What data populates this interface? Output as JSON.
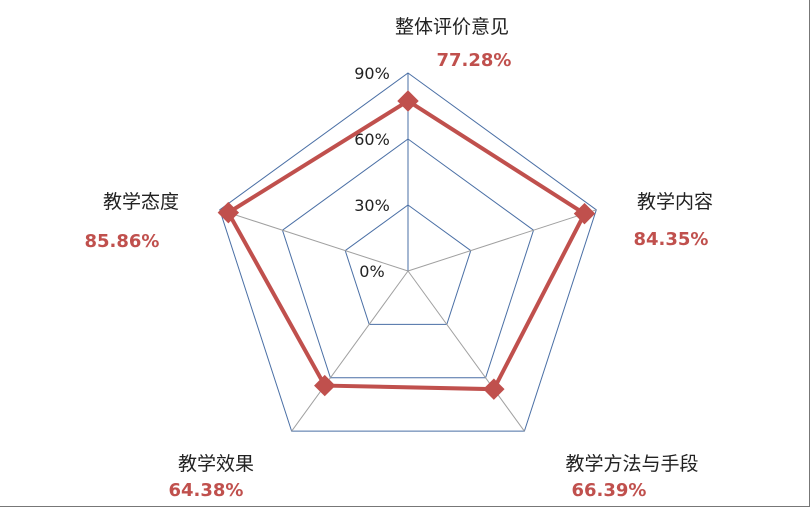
{
  "chart_data": {
    "type": "radar",
    "categories": [
      "整体评价意见",
      "教学内容",
      "教学方法与手段",
      "教学效果",
      "教学态度"
    ],
    "series": [
      {
        "values": [
          77.28,
          84.35,
          66.39,
          64.38,
          85.86
        ]
      }
    ],
    "value_labels": [
      "77.28%",
      "84.35%",
      "66.39%",
      "64.38%",
      "85.86%"
    ],
    "radial_ticks": [
      0,
      30,
      60,
      90
    ],
    "radial_tick_labels": [
      "0%",
      "30%",
      "60%",
      "90%"
    ],
    "rlim": [
      0,
      100
    ],
    "grid": true,
    "legend": "none",
    "colors": {
      "series": "#c0504d",
      "value_label": "#c0504d",
      "grid_ring": "#4a6fa5",
      "spoke": "#a0a0a0"
    },
    "marker": "diamond"
  }
}
